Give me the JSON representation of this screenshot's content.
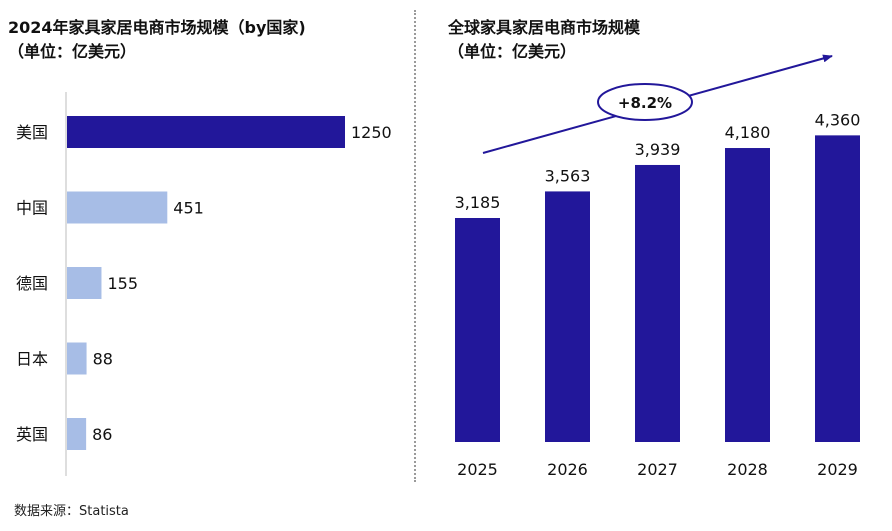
{
  "left_title_line1": "2024年家具家居电商市场规模（by国家)",
  "left_title_line2": "（单位：亿美元）",
  "right_title_line1": "全球家具家居电商市场规模",
  "right_title_line2": "（单位：亿美元）",
  "source": "数据来源：Statista",
  "colors": {
    "primary": "#22179a",
    "secondary": "#a7bde6",
    "arrow": "#22179a"
  },
  "chart_data": [
    {
      "type": "bar",
      "orientation": "horizontal",
      "title": "2024年家具家居电商市场规模（by国家)（单位：亿美元）",
      "categories": [
        "美国",
        "中国",
        "德国",
        "日本",
        "英国"
      ],
      "values": [
        1250,
        451,
        155,
        88,
        86
      ],
      "value_labels": [
        "1250",
        "451",
        "155",
        "88",
        "86"
      ],
      "highlight": "美国"
    },
    {
      "type": "bar",
      "orientation": "vertical",
      "title": "全球家具家居电商市场规模（单位：亿美元）",
      "categories": [
        "2025",
        "2026",
        "2027",
        "2028",
        "2029"
      ],
      "values": [
        3185,
        3563,
        3939,
        4180,
        4360
      ],
      "value_labels": [
        "3,185",
        "3,563",
        "3,939",
        "4,180",
        "4,360"
      ],
      "annotation": "+8.2%"
    }
  ]
}
